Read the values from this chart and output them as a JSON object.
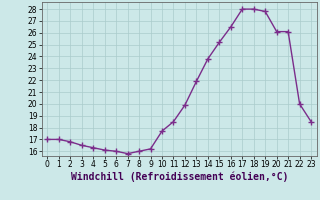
{
  "hours": [
    0,
    1,
    2,
    3,
    4,
    5,
    6,
    7,
    8,
    9,
    10,
    11,
    12,
    13,
    14,
    15,
    16,
    17,
    18,
    19,
    20,
    21,
    22,
    23
  ],
  "values": [
    17.0,
    17.0,
    16.8,
    16.5,
    16.3,
    16.1,
    16.0,
    15.8,
    16.0,
    16.2,
    17.7,
    18.5,
    19.9,
    21.9,
    23.8,
    25.2,
    26.5,
    28.0,
    28.0,
    27.8,
    26.1,
    26.1,
    20.0,
    18.5
  ],
  "line_color": "#7b2d8b",
  "marker": "+",
  "marker_size": 4,
  "marker_linewidth": 1.0,
  "bg_color": "#cce8e8",
  "grid_color": "#aacccc",
  "xlabel": "Windchill (Refroidissement éolien,°C)",
  "xlabel_fontsize": 7,
  "xtick_labels": [
    "0",
    "1",
    "2",
    "3",
    "4",
    "5",
    "6",
    "7",
    "8",
    "9",
    "10",
    "11",
    "12",
    "13",
    "14",
    "15",
    "16",
    "17",
    "18",
    "19",
    "20",
    "21",
    "22",
    "23"
  ],
  "ytick_min": 16,
  "ytick_max": 28,
  "ytick_step": 1,
  "ylim_min": 15.6,
  "ylim_max": 28.6,
  "xlim_min": -0.5,
  "xlim_max": 23.5,
  "linewidth": 1.0
}
